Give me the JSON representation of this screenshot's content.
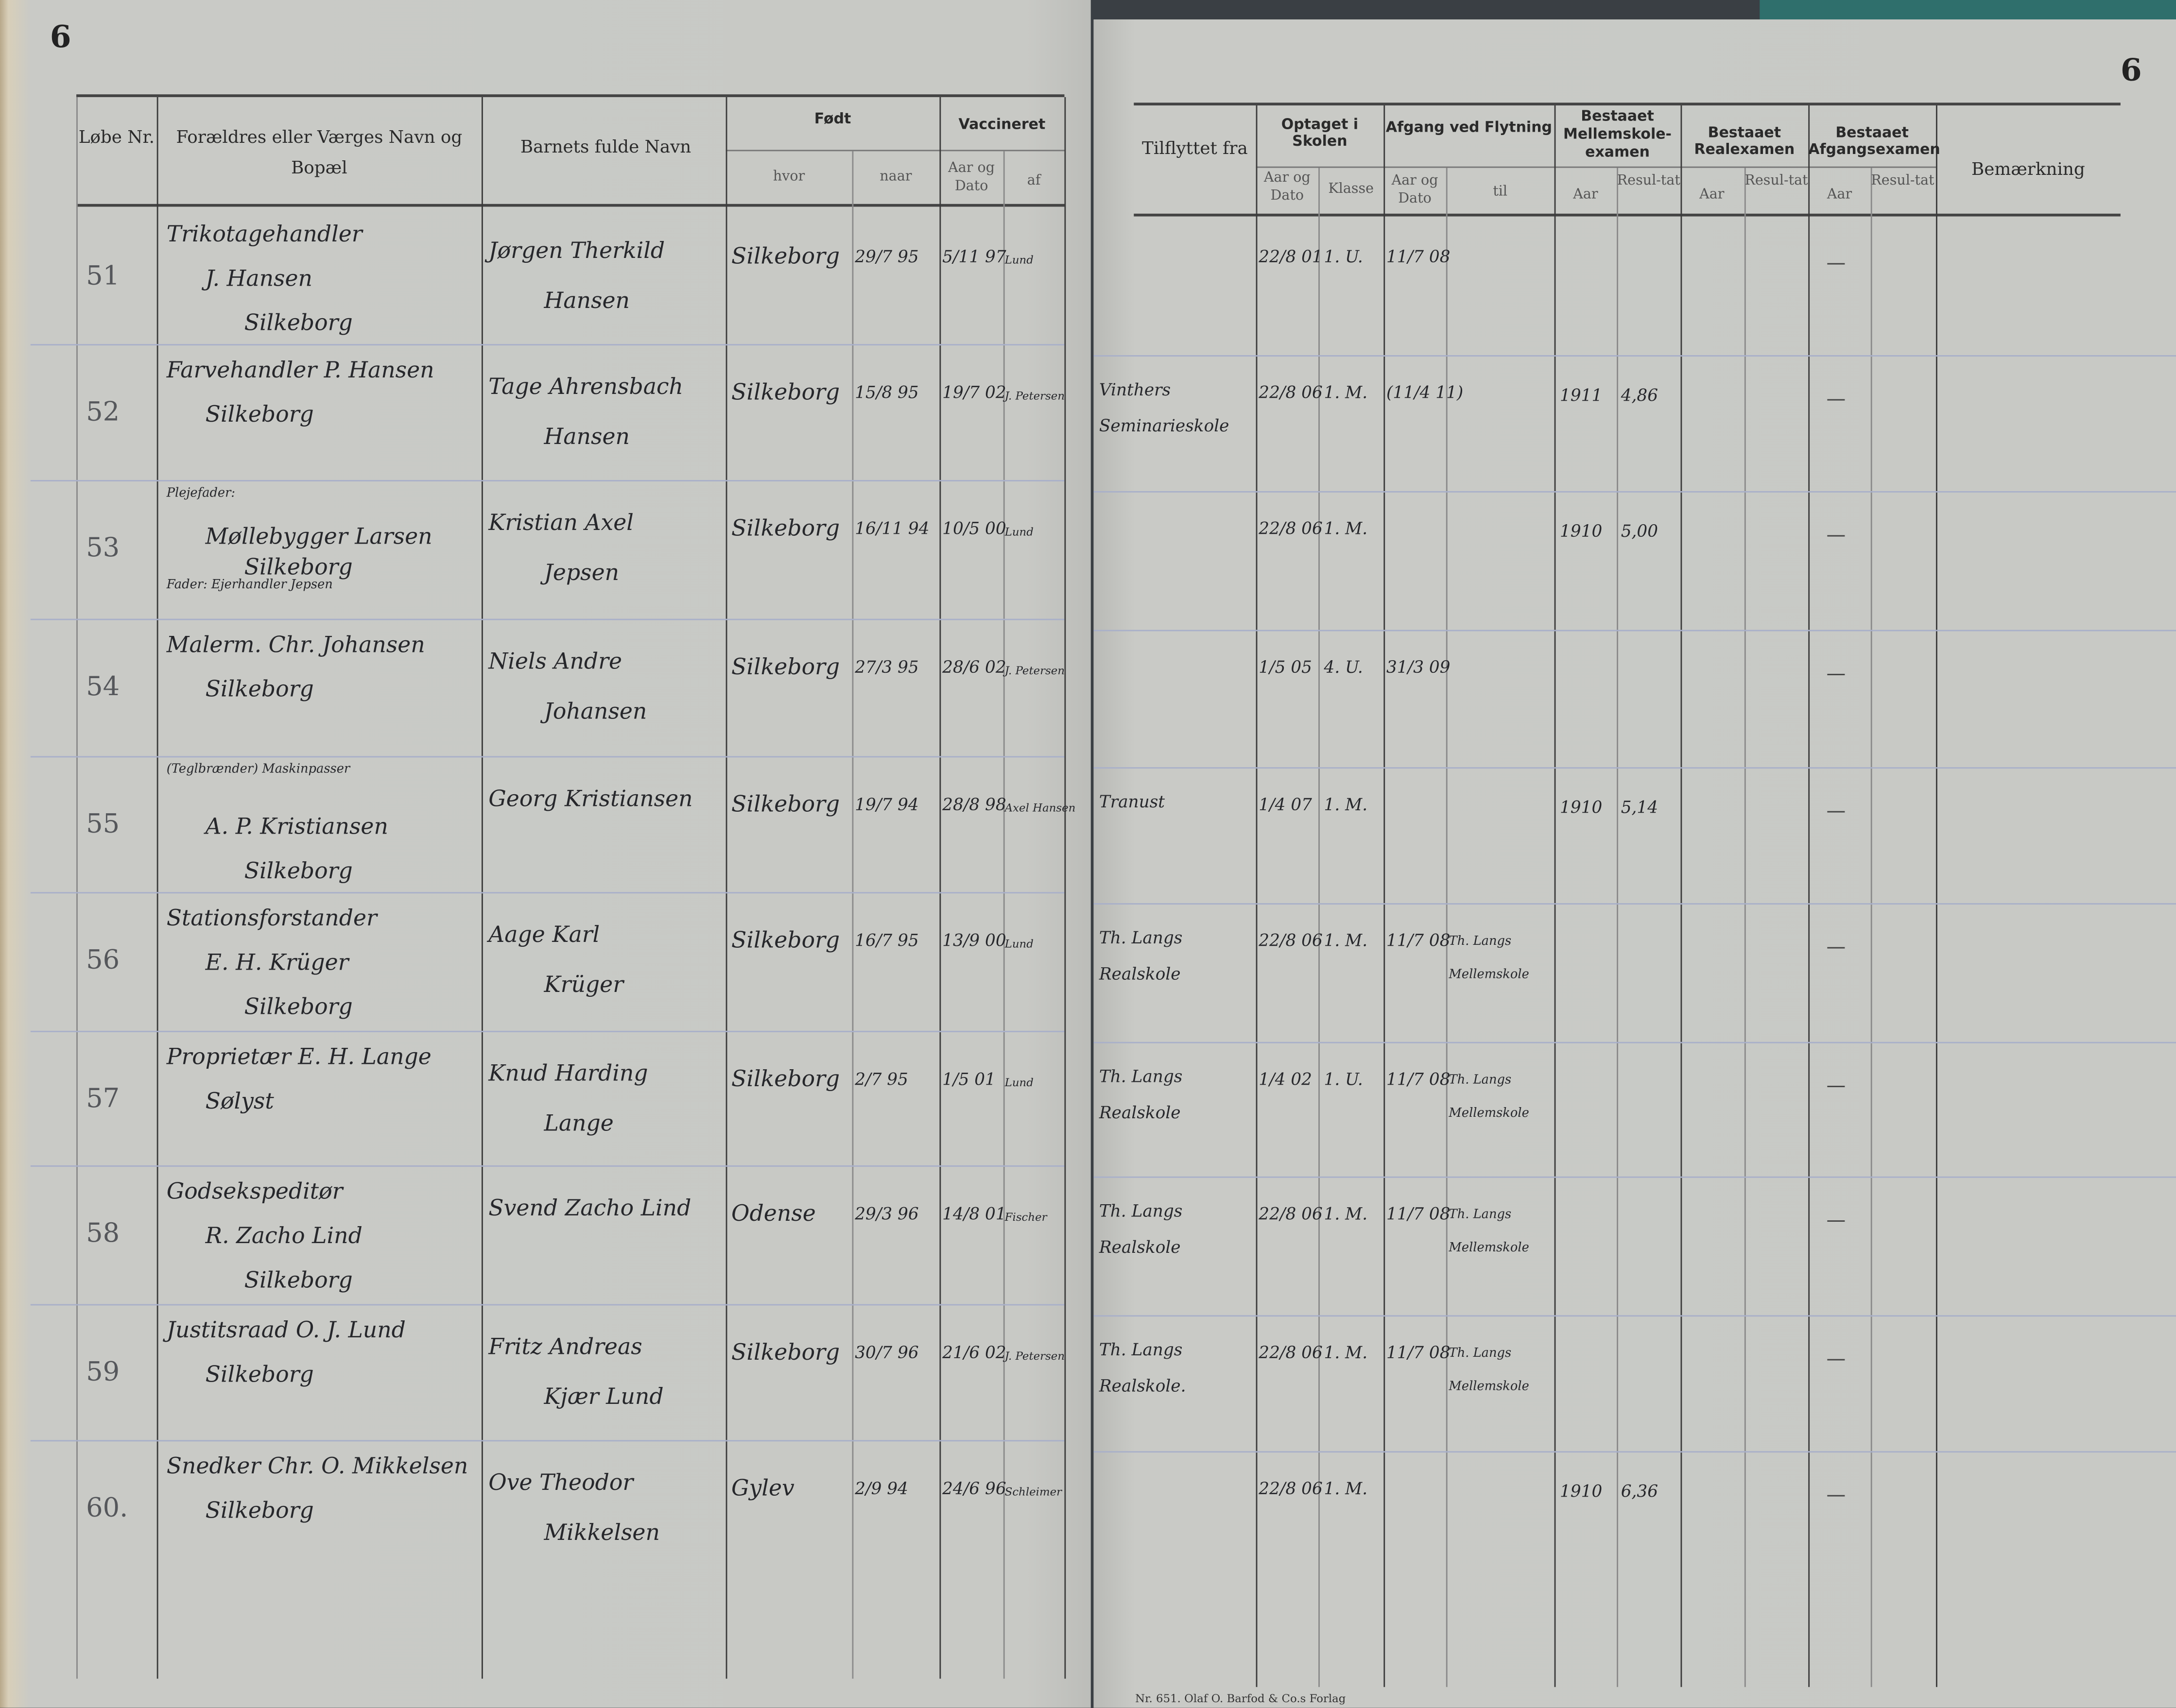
{
  "left_page": {
    "page_number": "6",
    "headers": {
      "nr": "Løbe Nr.",
      "parent": "Forældres eller Værges Navn og Bopæl",
      "child": "Barnets fulde Navn",
      "born": "Født",
      "born_where": "hvor",
      "born_when": "naar",
      "vaccinated": "Vaccineret",
      "vacc_date": "Aar og Dato",
      "vacc_by": "af"
    }
  },
  "right_page": {
    "page_number": "6",
    "headers": {
      "moved_from": "Tilflyttet fra",
      "admitted": "Optaget i Skolen",
      "admitted_date": "Aar og Dato",
      "class": "Klasse",
      "departure": "Afgang ved Flytning",
      "departure_date": "Aar og Dato",
      "departure_to": "til",
      "mellem": "Bestaaet Mellemskole-examen",
      "real": "Bestaaet Realexamen",
      "afgang": "Bestaaet Afgangsexamen",
      "year": "Aar",
      "result": "Resul-tat",
      "remark": "Bemærkning"
    },
    "footer": "Nr. 651. Olaf O. Barfod & Co.s Forlag"
  },
  "rows": [
    {
      "nr": "51",
      "parent": [
        "Trikotagehandler",
        "J. Hansen",
        "Silkeborg"
      ],
      "child": [
        "Jørgen Therkild",
        "Hansen"
      ],
      "born_where": "Silkeborg",
      "born_when": "29/7 95",
      "vacc_date": "5/11 97",
      "vacc_by": "Lund",
      "moved_from": [],
      "admitted_date": "22/8 01",
      "class": "1. U.",
      "left_date": "11/7 08",
      "left_to": [],
      "mellem_year": "",
      "mellem_result": "",
      "real_year": "",
      "real_result": "",
      "afgang_year": "—",
      "afgang_result": "",
      "remark": ""
    },
    {
      "nr": "52",
      "parent": [
        "Farvehandler P. Hansen",
        "Silkeborg"
      ],
      "child": [
        "Tage Ahrensbach",
        "Hansen"
      ],
      "born_where": "Silkeborg",
      "born_when": "15/8 95",
      "vacc_date": "19/7 02",
      "vacc_by": "J. Petersen",
      "moved_from": [
        "Vinthers",
        "Seminarieskole"
      ],
      "admitted_date": "22/8 06",
      "class": "1. M.",
      "left_date": "(11/4 11)",
      "left_to": [],
      "mellem_year": "1911",
      "mellem_result": "4,86",
      "real_year": "",
      "real_result": "",
      "afgang_year": "—",
      "afgang_result": "",
      "remark": ""
    },
    {
      "nr": "53",
      "parent": [
        "Plejefader:",
        "Møllebygger Larsen",
        "Silkeborg",
        "Fader: Ejerhandler Jepsen"
      ],
      "child": [
        "Kristian Axel",
        "Jepsen"
      ],
      "born_where": "Silkeborg",
      "born_when": "16/11 94",
      "vacc_date": "10/5 00",
      "vacc_by": "Lund",
      "moved_from": [],
      "admitted_date": "22/8 06",
      "class": "1. M.",
      "left_date": "",
      "left_to": [],
      "mellem_year": "1910",
      "mellem_result": "5,00",
      "real_year": "",
      "real_result": "",
      "afgang_year": "—",
      "afgang_result": "",
      "remark": ""
    },
    {
      "nr": "54",
      "parent": [
        "Malerm. Chr. Johansen",
        "Silkeborg"
      ],
      "child": [
        "Niels Andre",
        "Johansen"
      ],
      "born_where": "Silkeborg",
      "born_when": "27/3 95",
      "vacc_date": "28/6 02",
      "vacc_by": "J. Petersen",
      "moved_from": [],
      "admitted_date": "1/5 05",
      "class": "4. U.",
      "left_date": "31/3 09",
      "left_to": [],
      "mellem_year": "",
      "mellem_result": "",
      "real_year": "",
      "real_result": "",
      "afgang_year": "—",
      "afgang_result": "",
      "remark": ""
    },
    {
      "nr": "55",
      "parent": [
        "(Teglbrænder) Maskinpasser",
        "A. P. Kristiansen",
        "Silkeborg"
      ],
      "child": [
        "Georg Kristiansen"
      ],
      "born_where": "Silkeborg",
      "born_when": "19/7 94",
      "vacc_date": "28/8 98",
      "vacc_by": "Axel Hansen",
      "moved_from": [
        "Tranust"
      ],
      "admitted_date": "1/4 07",
      "class": "1. M.",
      "left_date": "",
      "left_to": [],
      "mellem_year": "1910",
      "mellem_result": "5,14",
      "real_year": "",
      "real_result": "",
      "afgang_year": "—",
      "afgang_result": "",
      "remark": ""
    },
    {
      "nr": "56",
      "parent": [
        "Stationsforstander",
        "E. H. Krüger",
        "Silkeborg"
      ],
      "child": [
        "Aage Karl",
        "Krüger"
      ],
      "born_where": "Silkeborg",
      "born_when": "16/7 95",
      "vacc_date": "13/9 00",
      "vacc_by": "Lund",
      "moved_from": [
        "Th. Langs",
        "Realskole"
      ],
      "admitted_date": "22/8 06",
      "class": "1. M.",
      "left_date": "11/7 08",
      "left_to": [
        "Th. Langs",
        "Mellemskole"
      ],
      "mellem_year": "",
      "mellem_result": "",
      "real_year": "",
      "real_result": "",
      "afgang_year": "—",
      "afgang_result": "",
      "remark": ""
    },
    {
      "nr": "57",
      "parent": [
        "Proprietær E. H. Lange",
        "Sølyst"
      ],
      "child": [
        "Knud Harding",
        "Lange"
      ],
      "born_where": "Silkeborg",
      "born_when": "2/7 95",
      "vacc_date": "1/5 01",
      "vacc_by": "Lund",
      "moved_from": [
        "Th. Langs",
        "Realskole"
      ],
      "admitted_date": "1/4 02",
      "class": "1. U.",
      "left_date": "11/7 08",
      "left_to": [
        "Th. Langs",
        "Mellemskole"
      ],
      "mellem_year": "",
      "mellem_result": "",
      "real_year": "",
      "real_result": "",
      "afgang_year": "—",
      "afgang_result": "",
      "remark": ""
    },
    {
      "nr": "58",
      "parent": [
        "Godsekspeditør",
        "R. Zacho Lind",
        "Silkeborg"
      ],
      "child": [
        "Svend Zacho Lind"
      ],
      "born_where": "Odense",
      "born_when": "29/3 96",
      "vacc_date": "14/8 01",
      "vacc_by": "Fischer",
      "moved_from": [
        "Th. Langs",
        "Realskole"
      ],
      "admitted_date": "22/8 06",
      "class": "1. M.",
      "left_date": "11/7 08",
      "left_to": [
        "Th. Langs",
        "Mellemskole"
      ],
      "mellem_year": "",
      "mellem_result": "",
      "real_year": "",
      "real_result": "",
      "afgang_year": "—",
      "afgang_result": "",
      "remark": ""
    },
    {
      "nr": "59",
      "parent": [
        "Justitsraad O. J. Lund",
        "Silkeborg"
      ],
      "child": [
        "Fritz Andreas",
        "Kjær Lund"
      ],
      "born_where": "Silkeborg",
      "born_when": "30/7 96",
      "vacc_date": "21/6 02",
      "vacc_by": "J. Petersen",
      "moved_from": [
        "Th. Langs",
        "Realskole."
      ],
      "admitted_date": "22/8 06",
      "class": "1. M.",
      "left_date": "11/7 08",
      "left_to": [
        "Th. Langs",
        "Mellemskole"
      ],
      "mellem_year": "",
      "mellem_result": "",
      "real_year": "",
      "real_result": "",
      "afgang_year": "—",
      "afgang_result": "",
      "remark": ""
    },
    {
      "nr": "60.",
      "parent": [
        "Snedker Chr. O. Mikkelsen",
        "Silkeborg"
      ],
      "child": [
        "Ove Theodor",
        "Mikkelsen"
      ],
      "born_where": "Gylev",
      "born_when": "2/9 94",
      "vacc_date": "24/6 96",
      "vacc_by": "Schleimer",
      "moved_from": [],
      "admitted_date": "22/8 06",
      "class": "1. M.",
      "left_date": "",
      "left_to": [],
      "mellem_year": "1910",
      "mellem_result": "6,36",
      "real_year": "",
      "real_result": "",
      "afgang_year": "—",
      "afgang_result": "",
      "remark": ""
    }
  ]
}
